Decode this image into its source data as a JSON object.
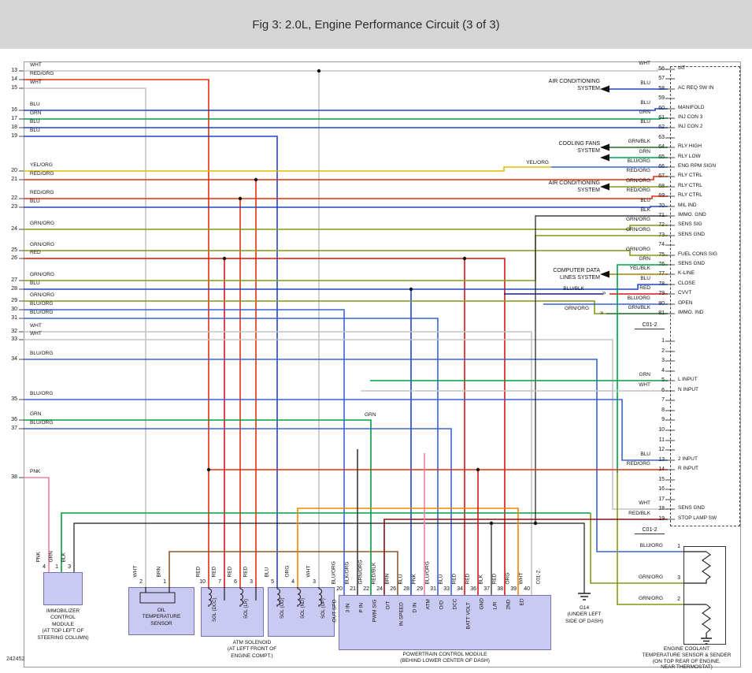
{
  "header": {
    "title": "Fig 3: 2.0L, Engine Performance Circuit (3 of 3)"
  },
  "figure_id": "242452",
  "colors": {
    "WHT": "#c4c4c4",
    "BLK": "#1a1a1a",
    "RED": "#d81414",
    "RED/ORG": "#e03010",
    "RED/BLK": "#8c1010",
    "BLU": "#2244cc",
    "BLU/ORG": "#3a62d8",
    "BLU/BLK": "#1a1a80",
    "GRN": "#00a040",
    "GRN/ORG": "#7f9c10",
    "GRN/BLK": "#206820",
    "YEL/ORG": "#ddbb00",
    "YEL/BLK": "#a08400",
    "PNK": "#ee7fa8",
    "BRN": "#8a5a28",
    "ORG": "#ee8800",
    "BLK/ORG": "#3c3c3c",
    "panel": "#c9c9f2",
    "header_bg": "#d5d5d5",
    "border": "#9a9a9a"
  },
  "connector": {
    "mid_label": "C01-2",
    "bottom_label": "C01-2",
    "pcm_label": "C01-2"
  },
  "left_pins": [
    {
      "n": "13",
      "w": "WHT"
    },
    {
      "n": "14",
      "w": "RED/ORG"
    },
    {
      "n": "15",
      "w": "WHT"
    },
    {
      "n": "16",
      "w": "BLU"
    },
    {
      "n": "17",
      "w": "GRN"
    },
    {
      "n": "18",
      "w": "BLU"
    },
    {
      "n": "19",
      "w": "BLU"
    },
    {
      "n": "20",
      "w": "YEL/ORG"
    },
    {
      "n": "21",
      "w": "RED/ORG"
    },
    {
      "n": "22",
      "w": "RED/ORG"
    },
    {
      "n": "23",
      "w": "BLU"
    },
    {
      "n": "24",
      "w": "GRN/ORG"
    },
    {
      "n": "25",
      "w": "GRN/ORG"
    },
    {
      "n": "26",
      "w": "RED"
    },
    {
      "n": "27",
      "w": "GRN/ORG"
    },
    {
      "n": "28",
      "w": "BLU"
    },
    {
      "n": "29",
      "w": "GRN/ORG"
    },
    {
      "n": "30",
      "w": "BLU/ORG"
    },
    {
      "n": "31",
      "w": "BLU/ORG"
    },
    {
      "n": "32",
      "w": "WHT"
    },
    {
      "n": "33",
      "w": "WHT"
    },
    {
      "n": "34",
      "w": "BLU/ORG"
    },
    {
      "n": "35",
      "w": "BLU/ORG"
    },
    {
      "n": "36",
      "w": "GRN"
    },
    {
      "n": "37",
      "w": "BLU/ORG"
    },
    {
      "n": "38",
      "w": "PNK"
    }
  ],
  "right_top_pins": [
    {
      "n": "56",
      "w": "WHT",
      "f": "IAT"
    },
    {
      "n": "57",
      "w": "",
      "f": ""
    },
    {
      "n": "58",
      "w": "BLU",
      "f": "AC REQ SW IN"
    },
    {
      "n": "59",
      "w": "",
      "f": ""
    },
    {
      "n": "60",
      "w": "BLU",
      "f": "MANIFOLD"
    },
    {
      "n": "61",
      "w": "GRN",
      "f": "INJ CON 3"
    },
    {
      "n": "62",
      "w": "BLU",
      "f": "INJ CON 2"
    },
    {
      "n": "63",
      "w": "",
      "f": ""
    },
    {
      "n": "64",
      "w": "GRN/BLK",
      "f": "RLY HIGH"
    },
    {
      "n": "65",
      "w": "GRN",
      "f": "RLY LOW"
    },
    {
      "n": "66",
      "w": "BLU/ORG",
      "f": "ENG RPM SIGN"
    },
    {
      "n": "67",
      "w": "RED/ORG",
      "f": "RLY CTRL"
    },
    {
      "n": "68",
      "w": "GRN/ORG",
      "f": "RLY CTRL"
    },
    {
      "n": "69",
      "w": "RED/ORG",
      "f": "RLY CTRL"
    },
    {
      "n": "70",
      "w": "BLU",
      "f": "MIL IND"
    },
    {
      "n": "71",
      "w": "BLK",
      "f": "IMMO. GND"
    },
    {
      "n": "72",
      "w": "GRN/ORG",
      "f": "SENS SIG"
    },
    {
      "n": "73",
      "w": "GRN/ORG",
      "f": "SENS GND"
    },
    {
      "n": "74",
      "w": "",
      "f": ""
    },
    {
      "n": "75",
      "w": "GRN/ORG",
      "f": "FUEL CONS SIG"
    },
    {
      "n": "76",
      "w": "GRN",
      "f": "SENS GND"
    },
    {
      "n": "77",
      "w": "YEL/BLK",
      "f": "K-LINE"
    },
    {
      "n": "78",
      "w": "BLU",
      "f": "CLOSE"
    },
    {
      "n": "79",
      "w": "RED",
      "f": "CVVT"
    },
    {
      "n": "80",
      "w": "BLU/ORG",
      "f": "OPEN"
    },
    {
      "n": "81",
      "w": "GRN/BLK",
      "f": "IMMO. IND"
    }
  ],
  "right_bottom_pins": [
    {
      "n": "1",
      "w": "",
      "f": ""
    },
    {
      "n": "2",
      "w": "",
      "f": ""
    },
    {
      "n": "3",
      "w": "",
      "f": ""
    },
    {
      "n": "4",
      "w": "",
      "f": ""
    },
    {
      "n": "5",
      "w": "GRN",
      "f": "L INPUT"
    },
    {
      "n": "6",
      "w": "WHT",
      "f": "N INPUT"
    },
    {
      "n": "7",
      "w": "",
      "f": ""
    },
    {
      "n": "8",
      "w": "",
      "f": ""
    },
    {
      "n": "9",
      "w": "",
      "f": ""
    },
    {
      "n": "10",
      "w": "",
      "f": ""
    },
    {
      "n": "11",
      "w": "",
      "f": ""
    },
    {
      "n": "12",
      "w": "",
      "f": ""
    },
    {
      "n": "13",
      "w": "BLU",
      "f": "2 INPUT"
    },
    {
      "n": "14",
      "w": "RED/ORG",
      "f": "R INPUT"
    },
    {
      "n": "15",
      "w": "",
      "f": ""
    },
    {
      "n": "16",
      "w": "",
      "f": ""
    },
    {
      "n": "17",
      "w": "",
      "f": ""
    },
    {
      "n": "18",
      "w": "WHT",
      "f": "SENS GND"
    },
    {
      "n": "19",
      "w": "RED/BLK",
      "f": "STOP LAMP SW"
    }
  ],
  "callouts": {
    "ac1": "AIR CONDITIONING\nSYSTEM",
    "fans": "COOLING FANS\nSYSTEM",
    "ac2": "AIR CONDITIONING\nSYSTEM",
    "data_lines": "COMPUTER DATA\nLINES SYSTEM"
  },
  "floating_labels": [
    "YEL/ORG",
    "GRN",
    "BLU/BLK",
    "GRN/ORG"
  ],
  "components": {
    "immobilizer": {
      "caption": "IMMOBILIZER\nCONTROL\nMODULE\n(AT TOP LEFT OF\nSTEERING COLUMN)",
      "pins": [
        {
          "n": "4",
          "w": "PNK"
        },
        {
          "n": "1",
          "w": "GRN"
        },
        {
          "n": "3",
          "w": "BLK"
        }
      ]
    },
    "oil_temp": {
      "caption": "OIL\nTEMPERATURE\nSENSOR",
      "pins": [
        {
          "n": "2",
          "w": "WHT"
        },
        {
          "n": "1",
          "w": "BRN"
        }
      ]
    },
    "atm_solenoid": {
      "caption": "ATM SOLENOID\n(AT LEFT FRONT OF\nENGINE COMPT.)",
      "solenoids": [
        "SOL (DCC)",
        "SOL (LR)",
        "SOL (OD)",
        "SOL (ND)",
        "SOL (UP)"
      ],
      "pins": [
        {
          "n": "10",
          "w": "RED"
        },
        {
          "n": "7",
          "w": "RED"
        },
        {
          "n": "6",
          "w": "RED"
        },
        {
          "n": "3",
          "w": "RED"
        },
        {
          "n": "5",
          "w": "BLU"
        },
        {
          "n": "4",
          "w": "ORG"
        },
        {
          "n": "3",
          "w": "WHT"
        }
      ]
    },
    "pcm": {
      "caption": "POWERTRAIN CONTROL MODULE\n(BEHIND LOWER CENTER OF DASH)",
      "pins": [
        {
          "n": "20",
          "w": "BLU/ORG",
          "f": "OUT SPD"
        },
        {
          "n": "21",
          "w": "BLK/ORG",
          "f": "3 IN"
        },
        {
          "n": "22",
          "w": "GRN/ORG",
          "f": "P IN"
        },
        {
          "n": "24",
          "w": "RED/BLK",
          "f": "PWM SIG"
        },
        {
          "n": "26",
          "w": "BRN",
          "f": "O/T"
        },
        {
          "n": "28",
          "w": "BLU",
          "f": "IN SPEED"
        },
        {
          "n": "29",
          "w": "PNK",
          "f": "D IN"
        },
        {
          "n": "31",
          "w": "BLU/ORG",
          "f": "ATM"
        },
        {
          "n": "33",
          "w": "BLU",
          "f": "O/D"
        },
        {
          "n": "34",
          "w": "RED",
          "f": "DCC"
        },
        {
          "n": "36",
          "w": "RED",
          "f": "BATT VOLT"
        },
        {
          "n": "37",
          "w": "BLK",
          "f": "GND"
        },
        {
          "n": "38",
          "w": "RED",
          "f": "L/R"
        },
        {
          "n": "39",
          "w": "ORG",
          "f": "2ND"
        },
        {
          "n": "40",
          "w": "WHT",
          "f": "ED"
        }
      ]
    },
    "g14": {
      "caption": "G14\n(UNDER LEFT\nSIDE OF DASH)"
    },
    "coolant": {
      "caption": "ENGINE COOLANT\nTEMPERATURE SENSOR & SENDER\n(ON TOP REAR OF ENGINE,\nNEAR THERMOSTAT)",
      "pins": [
        {
          "n": "1",
          "w": "BLU/ORG"
        },
        {
          "n": "3",
          "w": "GRN/ORG"
        },
        {
          "n": "2",
          "w": "GRN/ORG"
        }
      ]
    }
  }
}
